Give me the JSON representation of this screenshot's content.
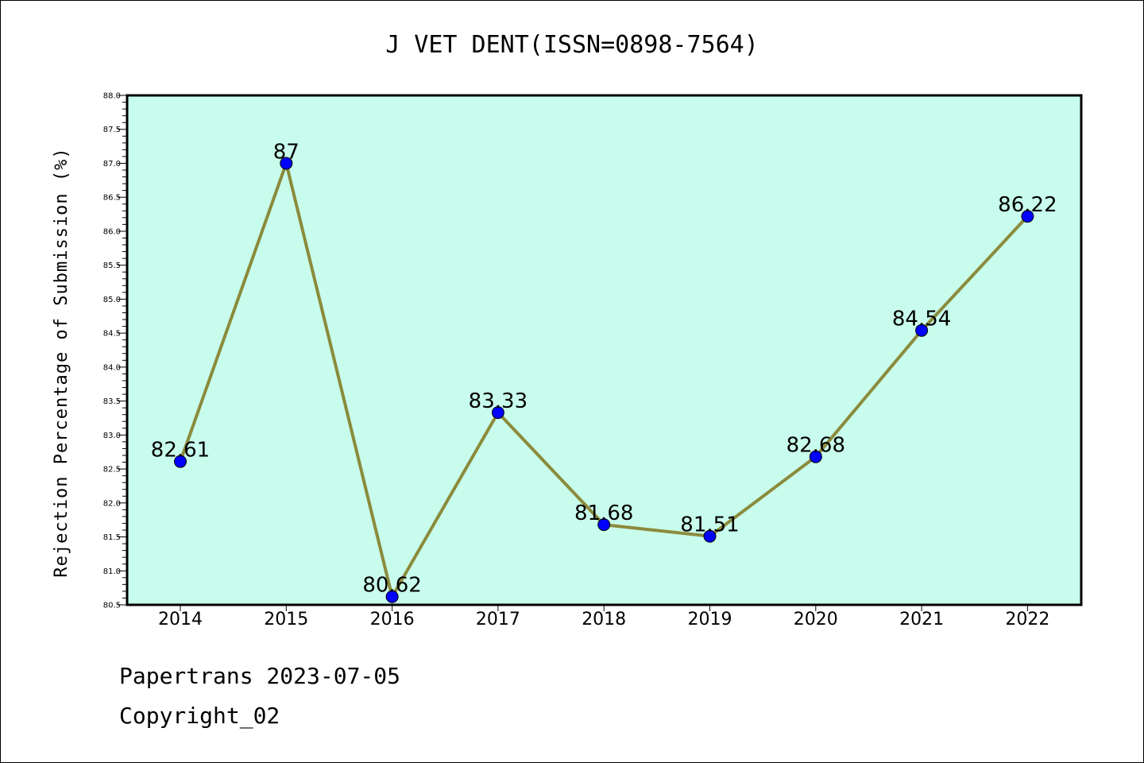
{
  "chart_data": {
    "type": "line",
    "title": "J VET DENT(ISSN=0898-7564)",
    "ylabel": "Rejection Percentage of Submission (%)",
    "xlabel": "",
    "categories": [
      "2014",
      "2015",
      "2016",
      "2017",
      "2018",
      "2019",
      "2020",
      "2021",
      "2022"
    ],
    "values": [
      82.61,
      87,
      80.62,
      83.33,
      81.68,
      81.51,
      82.68,
      84.54,
      86.22
    ],
    "data_labels": [
      "82.61",
      "87",
      "80.62",
      "83.33",
      "81.68",
      "81.51",
      "82.68",
      "84.54",
      "86.22"
    ],
    "ylim": [
      80.5,
      88.0
    ],
    "yticks": [
      "80.5",
      "81.0",
      "81.5",
      "82.0",
      "82.5",
      "83.0",
      "83.5",
      "84.0",
      "84.5",
      "85.0",
      "85.5",
      "86.0",
      "86.5",
      "87.0",
      "87.5",
      "88.0"
    ],
    "grid": false,
    "colors": {
      "plot_background": "#c8fcec",
      "line": "#8b8b3c",
      "marker": "#0000ff"
    }
  },
  "footer": {
    "line1": "Papertrans 2023-07-05",
    "line2": "Copyright_02"
  }
}
